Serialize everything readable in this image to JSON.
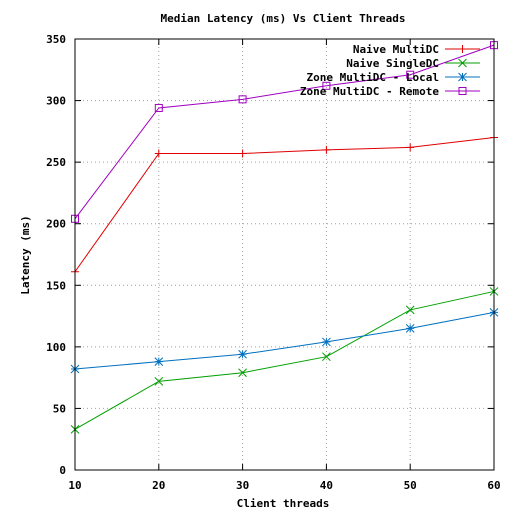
{
  "chart_data": {
    "type": "line",
    "title": "Median Latency (ms) Vs Client Threads",
    "xlabel": "Client threads",
    "ylabel": "Latency (ms)",
    "x": [
      10,
      20,
      30,
      40,
      50,
      60
    ],
    "xlim": [
      10,
      60
    ],
    "ylim": [
      0,
      350
    ],
    "xticks": [
      10,
      20,
      30,
      40,
      50,
      60
    ],
    "yticks": [
      0,
      50,
      100,
      150,
      200,
      250,
      300,
      350
    ],
    "grid": true,
    "legend_position": "top-right",
    "series": [
      {
        "name": "Naive MultiDC",
        "color": "#e00000",
        "marker": "plus",
        "values": [
          161,
          257,
          257,
          260,
          262,
          270
        ]
      },
      {
        "name": "Naive SingleDC",
        "color": "#00a000",
        "marker": "cross",
        "values": [
          33,
          72,
          79,
          92,
          130,
          145
        ]
      },
      {
        "name": "Zone MultiDC - Local",
        "color": "#0070c0",
        "marker": "star",
        "values": [
          82,
          88,
          94,
          104,
          115,
          128
        ]
      },
      {
        "name": "Zone MultiDC - Remote",
        "color": "#a000c0",
        "marker": "square",
        "values": [
          204,
          294,
          301,
          312,
          321,
          345
        ]
      }
    ]
  }
}
